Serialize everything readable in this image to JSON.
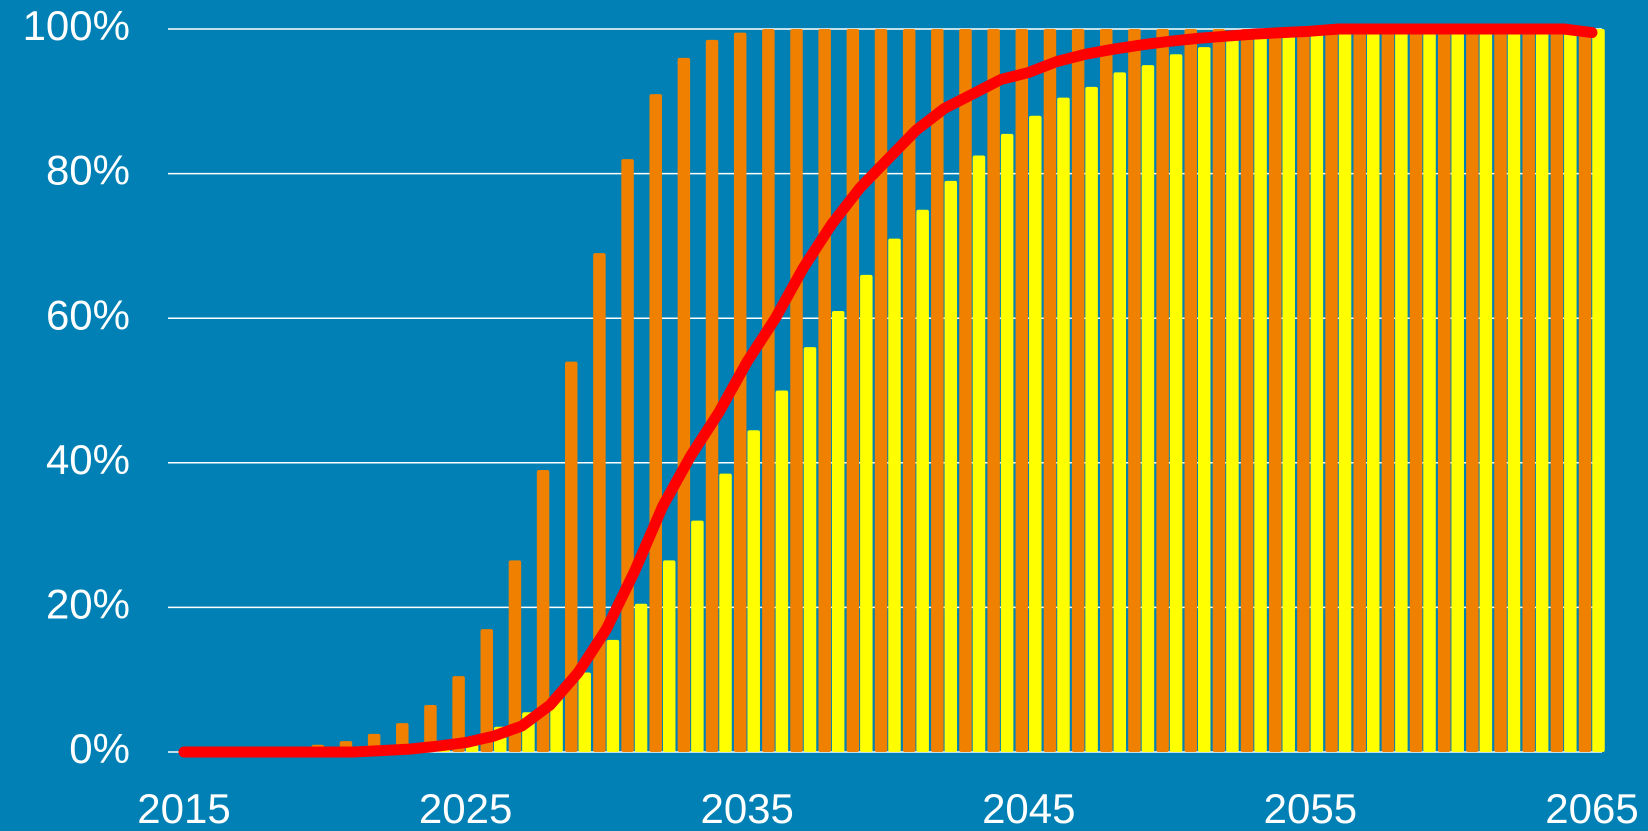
{
  "chart_data": {
    "type": "bar",
    "x": [
      2015,
      2016,
      2017,
      2018,
      2019,
      2020,
      2021,
      2022,
      2023,
      2024,
      2025,
      2026,
      2027,
      2028,
      2029,
      2030,
      2031,
      2032,
      2033,
      2034,
      2035,
      2036,
      2037,
      2038,
      2039,
      2040,
      2041,
      2042,
      2043,
      2044,
      2045,
      2046,
      2047,
      2048,
      2049,
      2050,
      2051,
      2052,
      2053,
      2054,
      2055,
      2056,
      2057,
      2058,
      2059,
      2060,
      2061,
      2062,
      2063,
      2064,
      2065
    ],
    "series": [
      {
        "color": "#f08000",
        "values": [
          0,
          0,
          0,
          0,
          0,
          1,
          1.5,
          2.5,
          4,
          6.5,
          10.5,
          17,
          26.5,
          39,
          54,
          69,
          82,
          91,
          96,
          98.5,
          99.5,
          100,
          100,
          100,
          100,
          100,
          100,
          100,
          100,
          100,
          100,
          100,
          100,
          100,
          100,
          100,
          100,
          100,
          100,
          100,
          100,
          100,
          100,
          100,
          100,
          100,
          100,
          100,
          100,
          100,
          100
        ]
      },
      {
        "color": "#ffff00",
        "values": [
          0,
          0,
          0,
          0,
          0,
          0,
          0,
          0,
          0.5,
          1,
          2,
          3.5,
          5.5,
          7.5,
          11,
          15.5,
          20.5,
          26.5,
          32,
          38.5,
          44.5,
          50,
          56,
          61,
          66,
          71,
          75,
          79,
          82.5,
          85.5,
          88,
          90.5,
          92,
          94,
          95,
          96.5,
          97.5,
          98.5,
          99,
          99.5,
          100,
          100,
          100,
          100,
          100,
          100,
          100,
          100,
          100,
          100,
          100
        ]
      },
      {
        "type": "line",
        "color": "#ff0000",
        "values": [
          0,
          0,
          0,
          0,
          0,
          0,
          0,
          0.2,
          0.4,
          0.8,
          1.3,
          2.2,
          3.6,
          6.5,
          11,
          17,
          25,
          34,
          41,
          47,
          54,
          60,
          67,
          73,
          78,
          82,
          86,
          89,
          91,
          93,
          94,
          95.5,
          96.5,
          97.2,
          97.8,
          98.3,
          98.7,
          99,
          99.3,
          99.5,
          99.7,
          100,
          100,
          100,
          100,
          100,
          100,
          100,
          100,
          100,
          99.5
        ]
      }
    ],
    "xlim": [
      2015,
      2065
    ],
    "xticks": [
      2015,
      2025,
      2035,
      2045,
      2055,
      2065
    ],
    "ylim": [
      0,
      100
    ],
    "yticks": [
      {
        "value": 0,
        "label": "0%"
      },
      {
        "value": 20,
        "label": "20%"
      },
      {
        "value": 40,
        "label": "40%"
      },
      {
        "value": 60,
        "label": "60%"
      },
      {
        "value": 80,
        "label": "80%"
      },
      {
        "value": 100,
        "label": "100%"
      }
    ],
    "grid": true
  }
}
